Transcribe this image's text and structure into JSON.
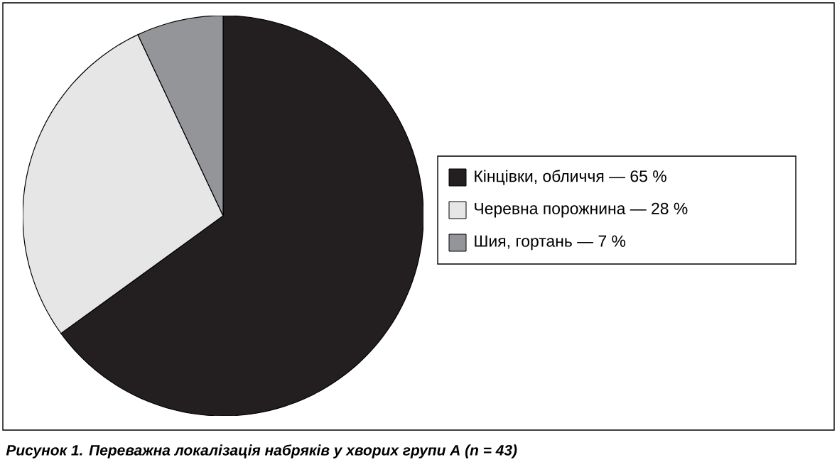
{
  "chart_data": {
    "type": "pie",
    "categories": [
      "Кінцівки, обличчя — 65 %",
      "Черевна порожнина — 28 %",
      "Шия, гортань — 7 %"
    ],
    "values": [
      65,
      28,
      7
    ],
    "colors": [
      "#231f20",
      "#e6e6e7",
      "#939598"
    ],
    "legend": "right",
    "annotations": [
      "Рисунок 1. Переважна локалізація набряків у хворих групи А (n = 43)"
    ]
  }
}
